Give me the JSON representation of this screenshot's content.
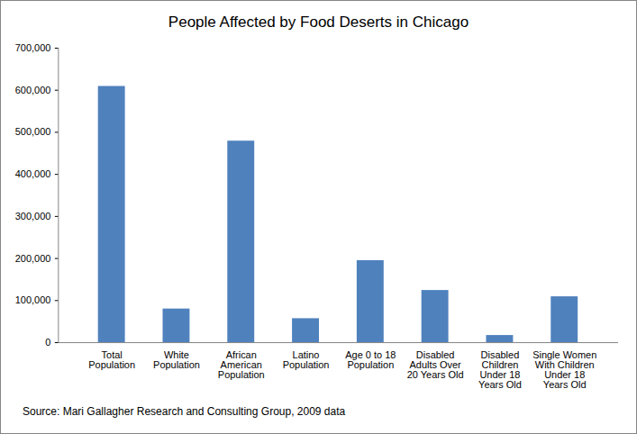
{
  "chart_data": {
    "type": "bar",
    "title": "People Affected by Food Deserts in Chicago",
    "categories": [
      "Total Population",
      "White Population",
      "African American Population",
      "Latino Population",
      "Age 0 to 18 Population",
      "Disabled Adults Over 20 Years Old",
      "Disabled Children Under 18 Years Old",
      "Single Women With Children Under 18 Years Old"
    ],
    "values": [
      609000,
      80000,
      479000,
      57000,
      195000,
      124000,
      17000,
      109000
    ],
    "color": "#4f81bd",
    "ylim": [
      0,
      700000
    ],
    "yticks": [
      0,
      {
        "value": 100000,
        "label": "100,000"
      },
      {
        "value": 200000,
        "label": "200,000"
      },
      {
        "value": 300000,
        "label": "300,000"
      },
      {
        "value": 400000,
        "label": "400,000"
      },
      {
        "value": 500000,
        "label": "500,000"
      },
      {
        "value": 600000,
        "label": "600,000"
      },
      {
        "value": 700000,
        "label": "700,000"
      }
    ],
    "grid": false,
    "annotations": [
      "Source: Mari Gallagher Research and Consulting Group, 2009 data"
    ]
  }
}
